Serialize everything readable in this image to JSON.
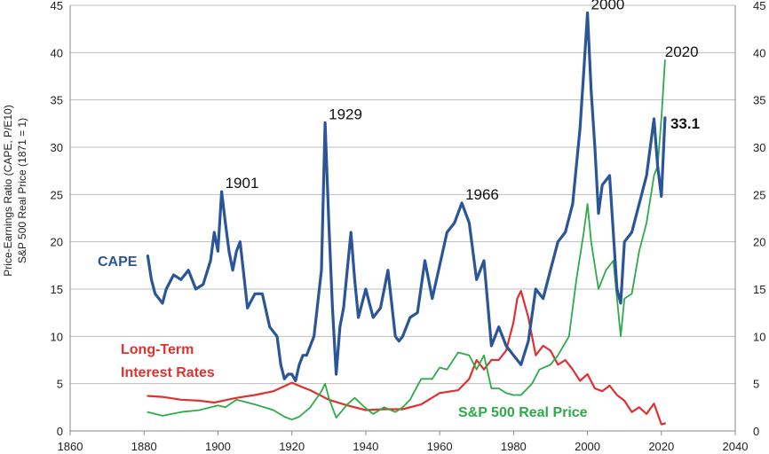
{
  "chart_data": {
    "type": "line",
    "xlabel": "",
    "ylabel": "Price-Earnings Ratio (CAPE, P/E10)",
    "ylabel2": "S&P 500 Real Price (1871 = 1)",
    "xlim": [
      1860,
      2040
    ],
    "ylim": [
      0,
      45
    ],
    "x_ticks": [
      "1860",
      "1880",
      "1900",
      "1920",
      "1940",
      "1960",
      "1980",
      "2000",
      "2020",
      "2040"
    ],
    "y_ticks": [
      "0",
      "5",
      "10",
      "15",
      "20",
      "25",
      "30",
      "35",
      "40",
      "45"
    ],
    "y2_ticks": [
      "0",
      "5",
      "10",
      "15",
      "20",
      "25",
      "30",
      "35",
      "40",
      "45"
    ],
    "grid": "horizontal",
    "annotations": [
      {
        "text": "1901",
        "x": 1901,
        "y": 25.3
      },
      {
        "text": "1929",
        "x": 1929,
        "y": 32.6
      },
      {
        "text": "1966",
        "x": 1966,
        "y": 24.1
      },
      {
        "text": "2000",
        "x": 2000,
        "y": 44.2
      },
      {
        "text": "2020",
        "x": 2020,
        "y": 39.2
      },
      {
        "text": "33.1",
        "x": 2021,
        "y": 33.1
      }
    ],
    "series": [
      {
        "name": "CAPE",
        "color": "#2a5599",
        "x": [
          1881,
          1882,
          1883,
          1884,
          1885,
          1886,
          1888,
          1890,
          1892,
          1894,
          1896,
          1898,
          1899,
          1900,
          1901,
          1902,
          1903,
          1904,
          1905,
          1906,
          1908,
          1910,
          1912,
          1914,
          1916,
          1917,
          1918,
          1919,
          1920,
          1921,
          1922,
          1923,
          1924,
          1926,
          1928,
          1929,
          1930,
          1931,
          1932,
          1933,
          1934,
          1936,
          1937,
          1938,
          1940,
          1942,
          1944,
          1946,
          1948,
          1949,
          1950,
          1952,
          1954,
          1956,
          1958,
          1960,
          1962,
          1964,
          1966,
          1968,
          1970,
          1972,
          1974,
          1976,
          1978,
          1980,
          1982,
          1984,
          1986,
          1988,
          1990,
          1992,
          1994,
          1996,
          1998,
          1999,
          2000,
          2001,
          2002,
          2003,
          2004,
          2006,
          2008,
          2009,
          2010,
          2012,
          2014,
          2016,
          2017,
          2018,
          2019,
          2020,
          2021
        ],
        "values": [
          18.5,
          16,
          14.5,
          14,
          13.5,
          15,
          16.5,
          16,
          17,
          15,
          15.5,
          18,
          21,
          19,
          25.3,
          22,
          19,
          17,
          19,
          20,
          13,
          14.5,
          14.5,
          11,
          10,
          7,
          5.5,
          6,
          6,
          5.3,
          7,
          8,
          8,
          10,
          17,
          32.6,
          22,
          13,
          6,
          11,
          13,
          21,
          16,
          12,
          15,
          12,
          13,
          17,
          10,
          9.5,
          10,
          12,
          12.5,
          18,
          14,
          17.5,
          21,
          22,
          24.1,
          22,
          16,
          18,
          9,
          11,
          9,
          8,
          7,
          9.5,
          15,
          14,
          17,
          20,
          21,
          24,
          32,
          38,
          44.2,
          36,
          30,
          23,
          26,
          27,
          15,
          13.5,
          20,
          21,
          24,
          27,
          30,
          33,
          28,
          24.8,
          33.1
        ]
      },
      {
        "name": "S&P 500 Real Price",
        "color": "#2eaa4a",
        "x": [
          1881,
          1885,
          1890,
          1895,
          1900,
          1902,
          1905,
          1910,
          1915,
          1918,
          1920,
          1922,
          1925,
          1928,
          1929,
          1930,
          1932,
          1935,
          1937,
          1940,
          1942,
          1945,
          1948,
          1950,
          1952,
          1955,
          1958,
          1960,
          1962,
          1965,
          1966,
          1968,
          1970,
          1972,
          1974,
          1976,
          1978,
          1980,
          1982,
          1985,
          1987,
          1990,
          1992,
          1995,
          1997,
          1999,
          2000,
          2001,
          2003,
          2005,
          2007,
          2009,
          2010,
          2012,
          2014,
          2016,
          2018,
          2019,
          2020,
          2021
        ],
        "values": [
          2,
          1.6,
          2,
          2.2,
          2.7,
          2.5,
          3.3,
          2.8,
          2.2,
          1.5,
          1.2,
          1.5,
          2.5,
          4.2,
          5,
          3.5,
          1.4,
          2.8,
          3.5,
          2.4,
          1.8,
          2.5,
          2,
          2.5,
          3.3,
          5.5,
          5.5,
          6.7,
          6.5,
          8.3,
          8.2,
          8,
          6.5,
          8,
          4.5,
          4.5,
          4,
          3.8,
          3.8,
          5,
          6.5,
          7,
          8,
          10,
          16,
          21,
          24,
          20,
          15,
          17,
          18,
          10,
          14,
          14.5,
          19,
          22,
          27,
          28,
          33,
          39.2
        ]
      },
      {
        "name": "Long-Term Interest Rates",
        "color": "#e03030",
        "x": [
          1881,
          1885,
          1890,
          1895,
          1899,
          1905,
          1910,
          1915,
          1920,
          1923,
          1925,
          1930,
          1935,
          1940,
          1945,
          1950,
          1955,
          1960,
          1965,
          1968,
          1970,
          1972,
          1974,
          1976,
          1978,
          1980,
          1981,
          1982,
          1984,
          1986,
          1988,
          1990,
          1992,
          1994,
          1996,
          1998,
          2000,
          2002,
          2004,
          2006,
          2008,
          2010,
          2012,
          2014,
          2016,
          2018,
          2020,
          2021
        ],
        "values": [
          3.7,
          3.6,
          3.3,
          3.2,
          3.0,
          3.5,
          3.8,
          4.2,
          5.1,
          4.6,
          4.3,
          3.3,
          2.7,
          2.2,
          2.3,
          2.3,
          2.8,
          4.0,
          4.3,
          5.5,
          7.5,
          6.5,
          7.5,
          7.5,
          8.5,
          11.5,
          14,
          14.8,
          12,
          8,
          9,
          8.5,
          7,
          7.5,
          6.5,
          5.3,
          6,
          4.5,
          4.2,
          4.8,
          3.8,
          3.2,
          2.0,
          2.5,
          1.8,
          2.9,
          0.7,
          0.8
        ]
      }
    ]
  },
  "labels": {
    "cape": "CAPE",
    "rates_line1": "Long-Term",
    "rates_line2": "Interest Rates",
    "sp500": "S&P 500 Real Price"
  }
}
